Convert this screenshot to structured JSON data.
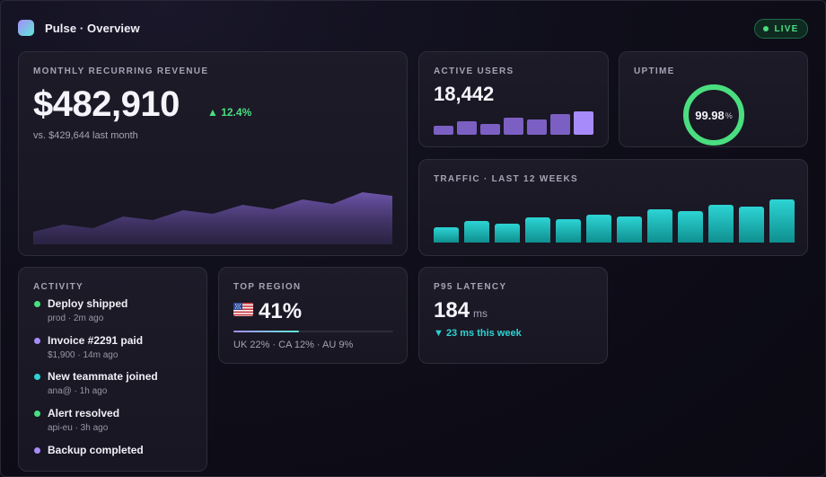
{
  "header": {
    "title": "Pulse · Overview",
    "live_label": "LIVE"
  },
  "mrr": {
    "label": "MONTHLY RECURRING REVENUE",
    "value": "$482,910",
    "delta": "▲ 12.4%",
    "comparison": "vs. $429,644 last month",
    "trend": [
      14,
      22,
      18,
      31,
      27,
      38,
      34,
      44,
      39,
      50,
      45,
      58,
      54
    ]
  },
  "active_users": {
    "label": "ACTIVE USERS",
    "value": "18,442",
    "bars": [
      0.38,
      0.58,
      0.46,
      0.73,
      0.65,
      0.88,
      1.0
    ]
  },
  "uptime": {
    "label": "UPTIME",
    "value": "99.98",
    "unit": "%",
    "fraction": 0.9998
  },
  "traffic": {
    "label": "TRAFFIC · LAST 12 WEEKS",
    "bars": [
      0.34,
      0.48,
      0.42,
      0.56,
      0.52,
      0.63,
      0.58,
      0.75,
      0.7,
      0.84,
      0.8,
      0.97
    ]
  },
  "activity": {
    "label": "ACTIVITY",
    "items": [
      {
        "title": "Deploy shipped",
        "meta": "prod · 2m ago",
        "color": "#4ade80"
      },
      {
        "title": "Invoice #2291 paid",
        "meta": "$1,900 · 14m ago",
        "color": "#a78bfa"
      },
      {
        "title": "New teammate joined",
        "meta": "ana@ · 1h ago",
        "color": "#2dd4d4"
      },
      {
        "title": "Alert resolved",
        "meta": "api-eu · 3h ago",
        "color": "#4ade80"
      },
      {
        "title": "Backup completed",
        "meta": "",
        "color": "#a78bfa"
      }
    ]
  },
  "top_region": {
    "label": "TOP REGION",
    "flag": "us-flag-icon",
    "value": "41%",
    "fraction": 0.41,
    "breakdown": "UK 22% · CA 12% · AU 9%"
  },
  "latency": {
    "label": "P95 LATENCY",
    "value": "184",
    "unit": "ms",
    "delta": "▼ 23 ms this week"
  },
  "colors": {
    "accent_purple": "#a78bfa",
    "accent_teal": "#2dd4d4",
    "accent_green": "#4ade80"
  }
}
